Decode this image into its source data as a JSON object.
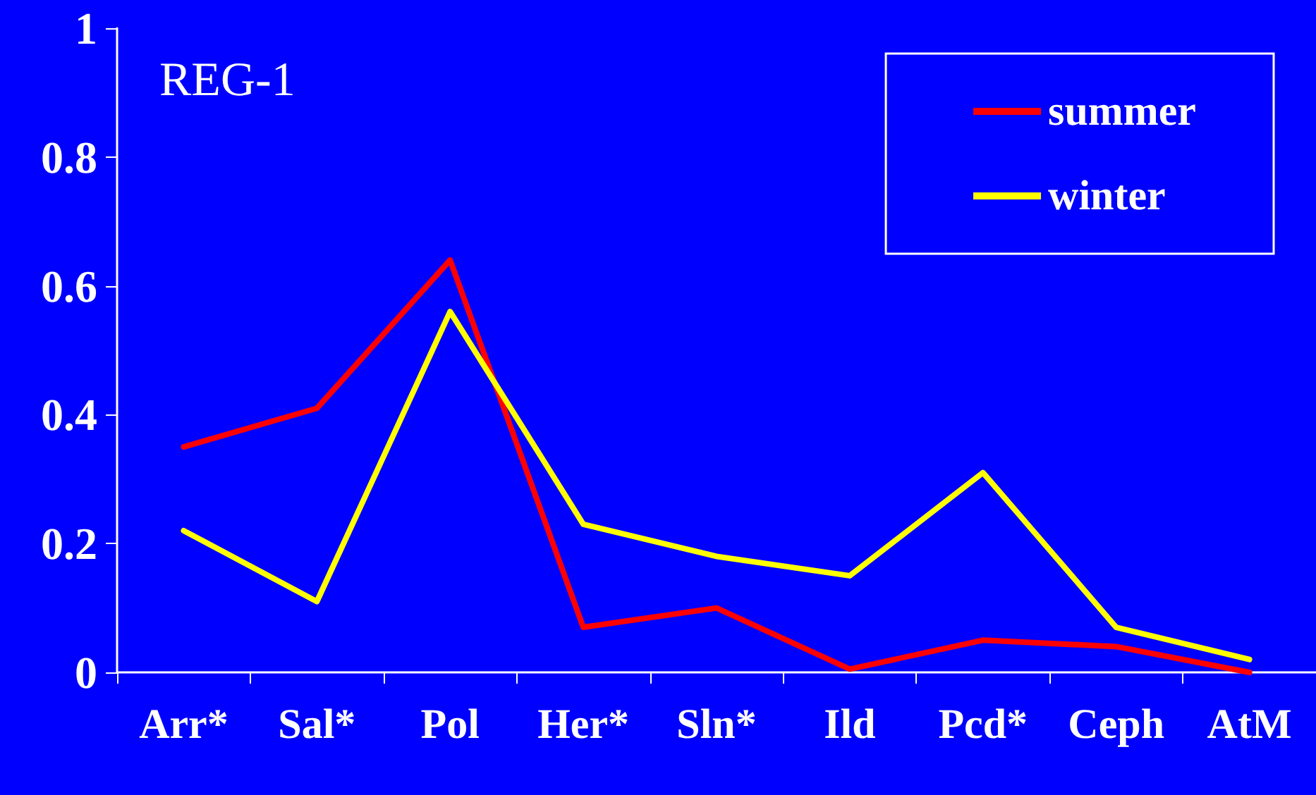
{
  "chart_data": {
    "type": "line",
    "annotations": [
      "REG-1"
    ],
    "categories": [
      "Arr*",
      "Sal*",
      "Pol",
      "Her*",
      "Sln*",
      "Ild",
      "Pcd*",
      "Ceph",
      "AtM"
    ],
    "series": [
      {
        "name": "summer",
        "color": "#ff0000",
        "values": [
          0.35,
          0.41,
          0.64,
          0.07,
          0.1,
          0.005,
          0.05,
          0.04,
          0
        ]
      },
      {
        "name": "winter",
        "color": "#ffff00",
        "values": [
          0.22,
          0.11,
          0.56,
          0.23,
          0.18,
          0.15,
          0.31,
          0.07,
          0.02
        ]
      }
    ],
    "ylim": [
      0,
      1
    ],
    "yticks": [
      0,
      0.2,
      0.4,
      0.6,
      0.8,
      1
    ],
    "grid": false,
    "legend": "top right",
    "marker": "none",
    "line_style": "solid"
  }
}
